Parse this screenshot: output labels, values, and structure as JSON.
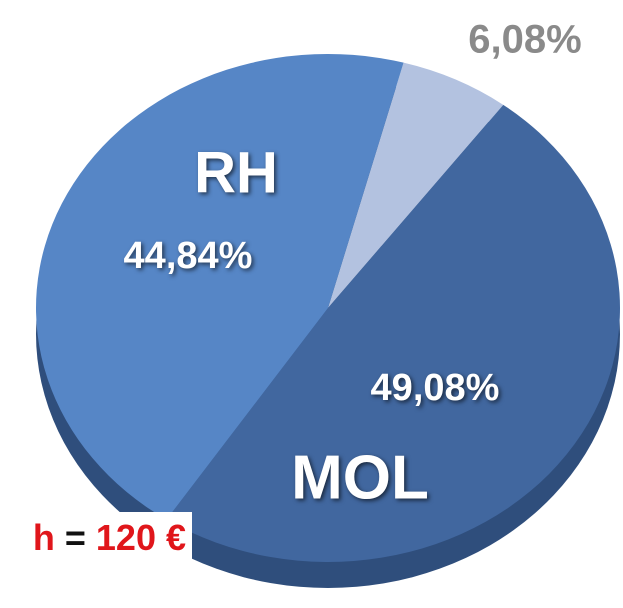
{
  "chart_data": {
    "type": "pie",
    "categories": [
      null,
      "MOL",
      "RH"
    ],
    "values": [
      6.08,
      49.08,
      44.84
    ],
    "value_labels": [
      "6,08%",
      "49,08%",
      "44,84%"
    ],
    "colors": [
      "#b3c2e0",
      "#41679f",
      "#5686c6"
    ],
    "annotation": [
      "h",
      "=",
      "120 €"
    ]
  }
}
